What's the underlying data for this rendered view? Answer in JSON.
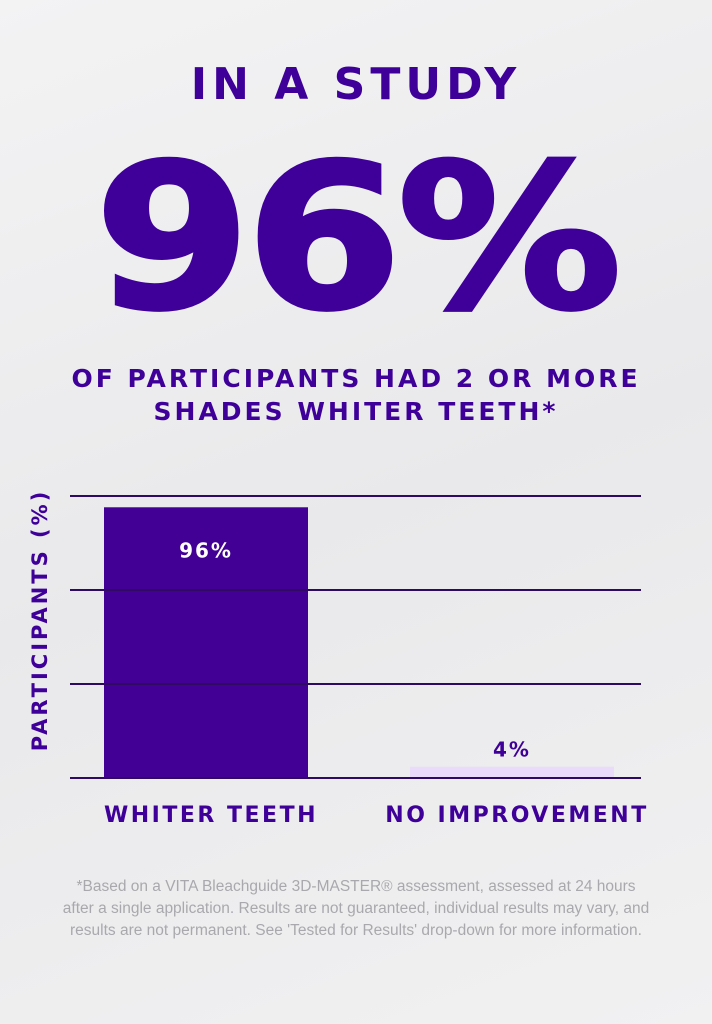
{
  "header": {
    "kicker": "IN A STUDY",
    "headline": "96%",
    "subtitle_line1": "OF PARTICIPANTS HAD 2 OR MORE",
    "subtitle_line2": "SHADES WHITER TEETH*"
  },
  "chart_data": {
    "type": "bar",
    "title": "",
    "xlabel": "",
    "ylabel": "PARTICIPANTS (%)",
    "ylim": [
      0,
      100
    ],
    "grid": true,
    "categories": [
      "WHITER TEETH",
      "NO IMPROVEMENT"
    ],
    "values": [
      96,
      4
    ],
    "data_labels": [
      "96%",
      "4%"
    ],
    "colors": [
      "#420094",
      "#eadbfb"
    ]
  },
  "colors": {
    "brand": "#3f0099",
    "gridline": "#2e0a63",
    "footnote": "#a9a9ad"
  },
  "footnote": "*Based on a VITA Bleachguide 3D-MASTER® assessment, assessed at 24 hours after a single application. Results are not guaranteed, individual results may vary, and results are not permanent. See 'Tested for Results' drop-down for more information."
}
